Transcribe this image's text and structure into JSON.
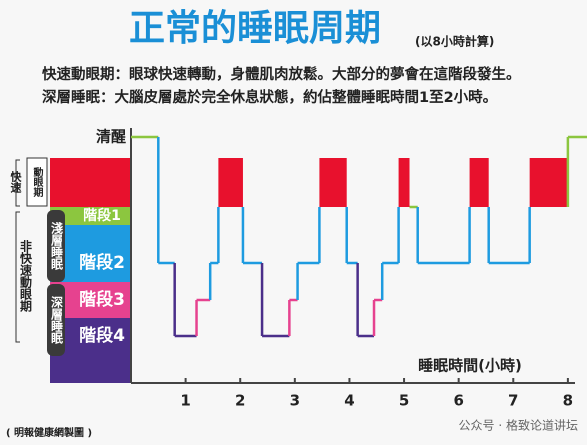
{
  "title": "正常的睡眠周期",
  "subtitle": "(以8小時計算)",
  "notes": [
    "快速動眼期：眼球快速轉動，身體肌肉放鬆。大部分的夢會在這階段發生。",
    "深層睡眠：大腦皮層處於完全休息狀態，約佔整體睡眠時間1至2小時。"
  ],
  "chart_data": {
    "type": "step",
    "stages": [
      "清醒",
      "動眼期",
      "階段1",
      "階段2",
      "階段3",
      "階段4"
    ],
    "stage_colors": [
      "#8cc63f",
      "#e8112d",
      "#8cc63f",
      "#1e9be0",
      "#e6428f",
      "#4b2f8a"
    ],
    "groups": {
      "rem": "快速",
      "light": "淺層睡眠",
      "deep": "深層睡眠",
      "nrem": "非快速動眼期"
    },
    "x": [
      0,
      0.5,
      0.8,
      1.2,
      1.45,
      1.6,
      2.05,
      2.4,
      2.9,
      3.05,
      3.45,
      3.95,
      4.15,
      4.45,
      4.6,
      4.9,
      5.1,
      5.25,
      6.2,
      6.55,
      7.3,
      8.0
    ],
    "values": [
      0,
      3,
      5,
      4,
      3,
      1,
      3,
      5,
      4,
      3,
      1,
      3,
      5,
      4,
      3,
      1,
      2,
      3,
      1,
      3,
      1,
      0
    ],
    "xlim": [
      0,
      8.35
    ],
    "xticks": [
      1,
      2,
      3,
      4,
      5,
      6,
      7,
      8
    ],
    "xlabel": "睡眠時間(小時)"
  },
  "credit": "( 明報健康網製圖 )",
  "watermark": "公众号 · 格致论道讲坛"
}
